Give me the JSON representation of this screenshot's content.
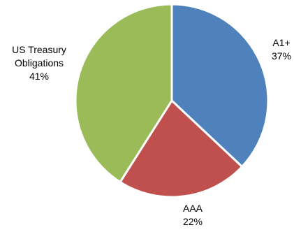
{
  "chart_data": {
    "type": "pie",
    "title": "",
    "slices": [
      {
        "label_lines": [
          "A1+"
        ],
        "value": 37,
        "value_label": "37%",
        "color": "#4F81BD"
      },
      {
        "label_lines": [
          "AAA"
        ],
        "value": 22,
        "value_label": "22%",
        "color": "#C0504D"
      },
      {
        "label_lines": [
          "US Treasury",
          "Obligations"
        ],
        "value": 41,
        "value_label": "41%",
        "color": "#9BBB59"
      }
    ],
    "start_angle_deg": 0,
    "direction": "clockwise",
    "legend": "none",
    "data_labels": "outside"
  }
}
